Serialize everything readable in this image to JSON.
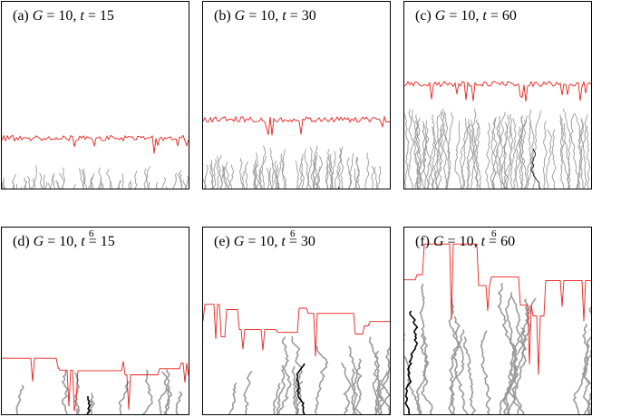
{
  "panels": [
    {
      "letter": "(a)",
      "g_base": "10",
      "g_exp": "",
      "t": "15",
      "front_level": 0.27,
      "cluster_level": 0.09,
      "style": "dense"
    },
    {
      "letter": "(b)",
      "g_base": "10",
      "g_exp": "",
      "t": "30",
      "front_level": 0.37,
      "cluster_level": 0.2,
      "style": "dense"
    },
    {
      "letter": "(c)",
      "g_base": "10",
      "g_exp": "",
      "t": "60",
      "front_level": 0.56,
      "cluster_level": 0.4,
      "style": "dense"
    },
    {
      "letter": "(d)",
      "g_base": "10",
      "g_exp": "6",
      "t": "15",
      "front_level": 0.3,
      "cluster_level": 0.14,
      "style": "sparse"
    },
    {
      "letter": "(e)",
      "g_base": "10",
      "g_exp": "6",
      "t": "30",
      "front_level": 0.5,
      "cluster_level": 0.32,
      "style": "sparse"
    },
    {
      "letter": "(f)",
      "g_base": "10",
      "g_exp": "6",
      "t": "60",
      "front_level": 0.72,
      "cluster_level": 0.6,
      "style": "sparse"
    }
  ],
  "text": {
    "g_symbol": "G",
    "t_symbol": "t",
    "equals": "="
  },
  "colors": {
    "front": "#e8211c",
    "cluster": "#9a9a9a",
    "highlight": "#000000",
    "frame": "#000000"
  }
}
